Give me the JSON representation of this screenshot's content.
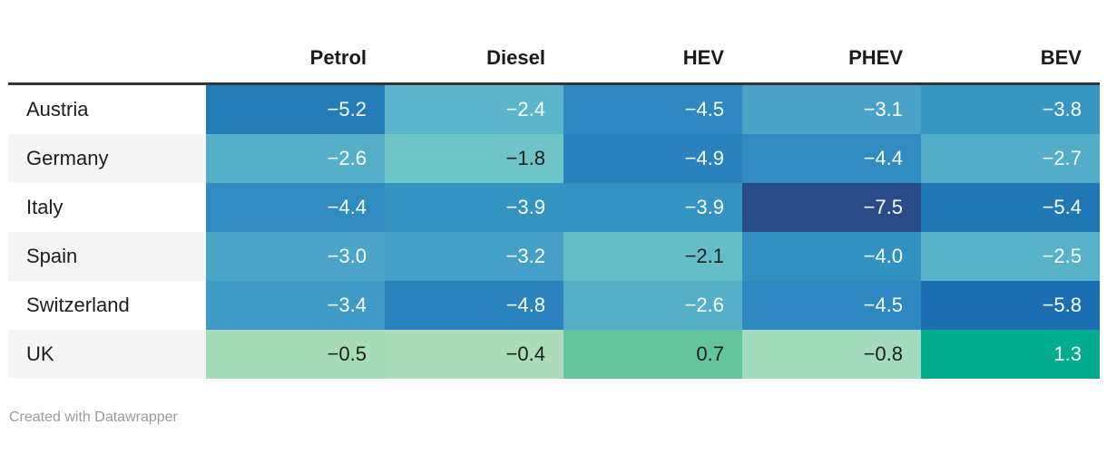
{
  "footer": {
    "credit": "Created with Datawrapper"
  },
  "colors": {
    "background": "#ffffff",
    "header_border": "#333333",
    "header_text": "#1a1a1a",
    "label_text": "#1d1d1d",
    "row_plain": "#ffffff",
    "row_stripe": "#f5f5f5",
    "credit_text": "#9b9b9b",
    "cell_text_light": "#ffffff",
    "cell_text_dark": "#1d1d1d"
  },
  "chart_data": {
    "type": "heatmap",
    "title": "",
    "xlabel": "",
    "ylabel": "",
    "legend": "none",
    "grid": "off",
    "value_range": [
      -7.5,
      1.3
    ],
    "categories_x": [
      "Petrol",
      "Diesel",
      "HEV",
      "PHEV",
      "BEV"
    ],
    "categories_y": [
      "Austria",
      "Germany",
      "Italy",
      "Spain",
      "Switzerland",
      "UK"
    ],
    "values": [
      [
        -5.2,
        -2.4,
        -4.5,
        -3.1,
        -3.8
      ],
      [
        -2.6,
        -1.8,
        -4.9,
        -4.4,
        -2.7
      ],
      [
        -4.4,
        -3.9,
        -3.9,
        -7.5,
        -5.4
      ],
      [
        -3.0,
        -3.2,
        -2.1,
        -4.0,
        -2.5
      ],
      [
        -3.4,
        -4.8,
        -2.6,
        -4.5,
        -5.8
      ],
      [
        -0.5,
        -0.4,
        0.7,
        -0.8,
        1.3
      ]
    ],
    "cell_colors": [
      [
        "#217cb8",
        "#5cb6c9",
        "#2d89c0",
        "#48a3c7",
        "#3896c3"
      ],
      [
        "#55afc8",
        "#6fc4c8",
        "#2982bd",
        "#2f8bc0",
        "#53adc8"
      ],
      [
        "#2f8bc0",
        "#3593c2",
        "#3593c2",
        "#294c88",
        "#1f78b5"
      ],
      [
        "#4aa5c8",
        "#44a0c6",
        "#65bdc7",
        "#3391c1",
        "#58b2c8"
      ],
      [
        "#3f9bc5",
        "#2a83bd",
        "#55afc8",
        "#2d89c0",
        "#1b6fb0"
      ],
      [
        "#a7dcb9",
        "#aaddb8",
        "#64c49c",
        "#a4dabd",
        "#00ab8e"
      ]
    ],
    "text_colors": [
      [
        "light",
        "light",
        "light",
        "light",
        "light"
      ],
      [
        "light",
        "dark",
        "light",
        "light",
        "light"
      ],
      [
        "light",
        "light",
        "light",
        "light",
        "light"
      ],
      [
        "light",
        "light",
        "dark",
        "light",
        "light"
      ],
      [
        "light",
        "light",
        "light",
        "light",
        "light"
      ],
      [
        "dark",
        "dark",
        "dark",
        "dark",
        "light"
      ]
    ]
  }
}
